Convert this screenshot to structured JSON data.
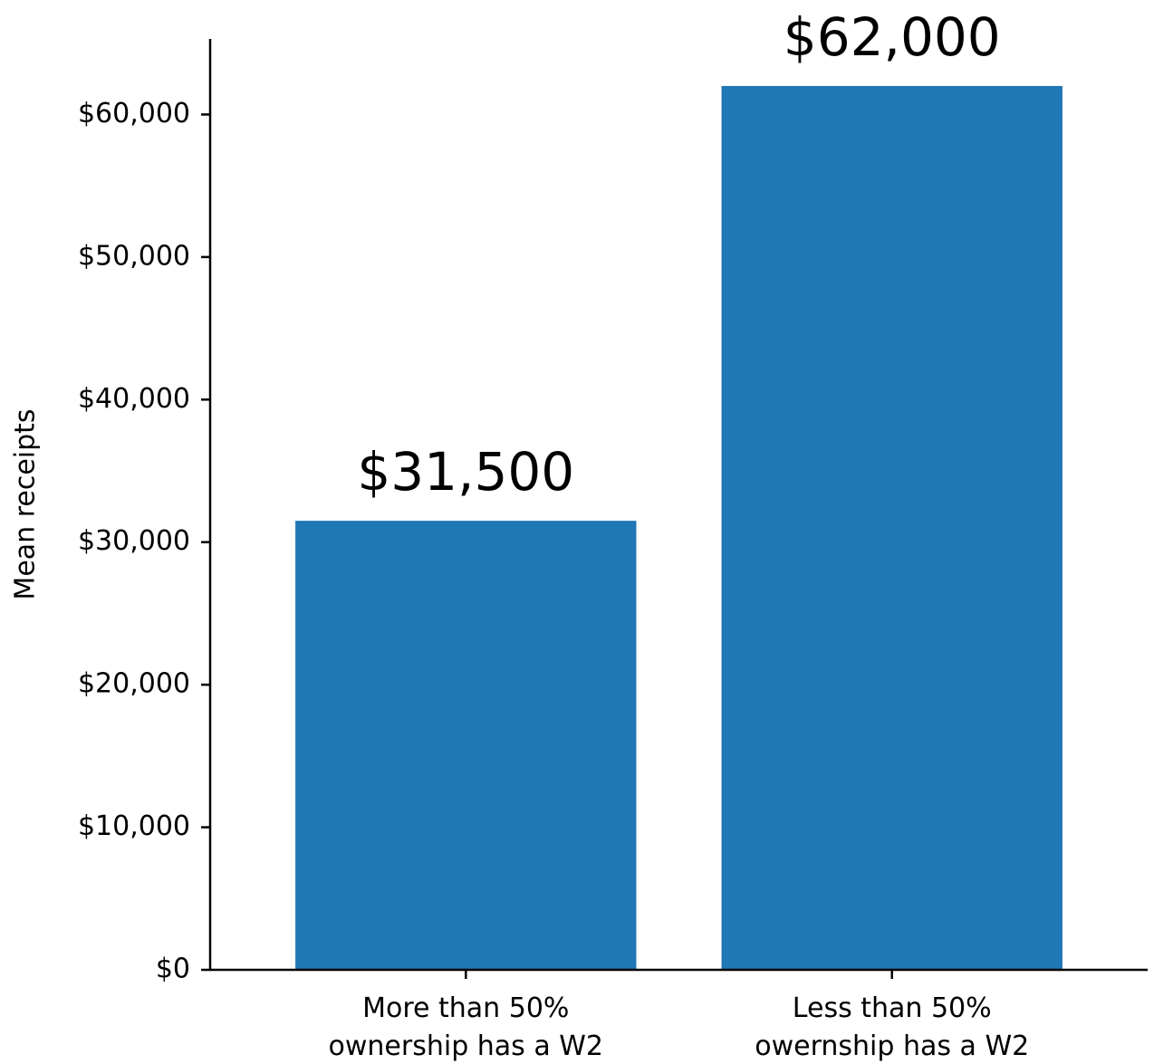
{
  "chart_data": {
    "type": "bar",
    "categories": [
      [
        "More than 50%",
        "ownership has a W2"
      ],
      [
        "Less than 50%",
        "owernship has a W2"
      ]
    ],
    "values": [
      31500,
      62000
    ],
    "data_labels": [
      "$31,500",
      "$62,000"
    ],
    "title": "",
    "xlabel": "",
    "ylabel": "Mean receipts",
    "ylim": [
      0,
      65300
    ],
    "yticks": [
      0,
      10000,
      20000,
      30000,
      40000,
      50000,
      60000
    ],
    "ytick_labels": [
      "$0",
      "$10,000",
      "$20,000",
      "$30,000",
      "$40,000",
      "$50,000",
      "$60,000"
    ],
    "grid": false,
    "legend": "none",
    "bar_color": "#1f77b4",
    "spines": [
      "left",
      "bottom"
    ]
  }
}
